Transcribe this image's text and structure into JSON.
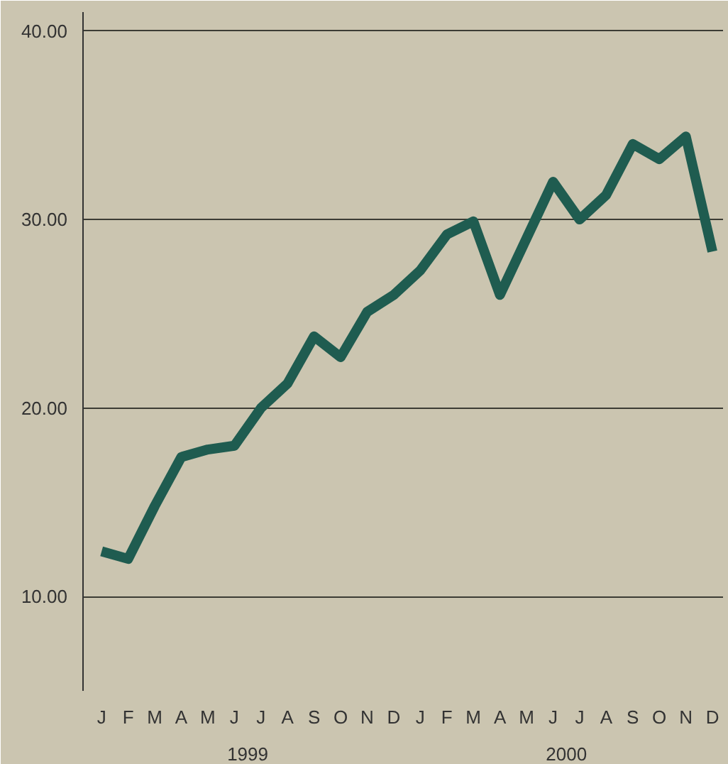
{
  "chart_data": {
    "type": "line",
    "categories": [
      "J",
      "F",
      "M",
      "A",
      "M",
      "J",
      "J",
      "A",
      "S",
      "O",
      "N",
      "D",
      "J",
      "F",
      "M",
      "A",
      "M",
      "J",
      "J",
      "A",
      "S",
      "O",
      "N",
      "D"
    ],
    "series": [
      {
        "color": "#1f5c50",
        "values": [
          12.4,
          12.0,
          14.8,
          17.4,
          17.8,
          18.0,
          20.0,
          21.3,
          23.8,
          22.7,
          25.1,
          26.0,
          27.3,
          29.2,
          29.9,
          26.0,
          29.0,
          32.0,
          30.0,
          31.3,
          34.0,
          33.2,
          34.4,
          28.3
        ]
      }
    ],
    "annotations": [
      "1999",
      "2000"
    ],
    "ylim": [
      5,
      41
    ],
    "yticks": [
      {
        "value": 10,
        "label": "10.00"
      },
      {
        "value": 20,
        "label": "20.00"
      },
      {
        "value": 30,
        "label": "30.00"
      },
      {
        "value": 40,
        "label": "40.00"
      }
    ],
    "grid": "y",
    "marker": "none",
    "line_style": "solid"
  }
}
